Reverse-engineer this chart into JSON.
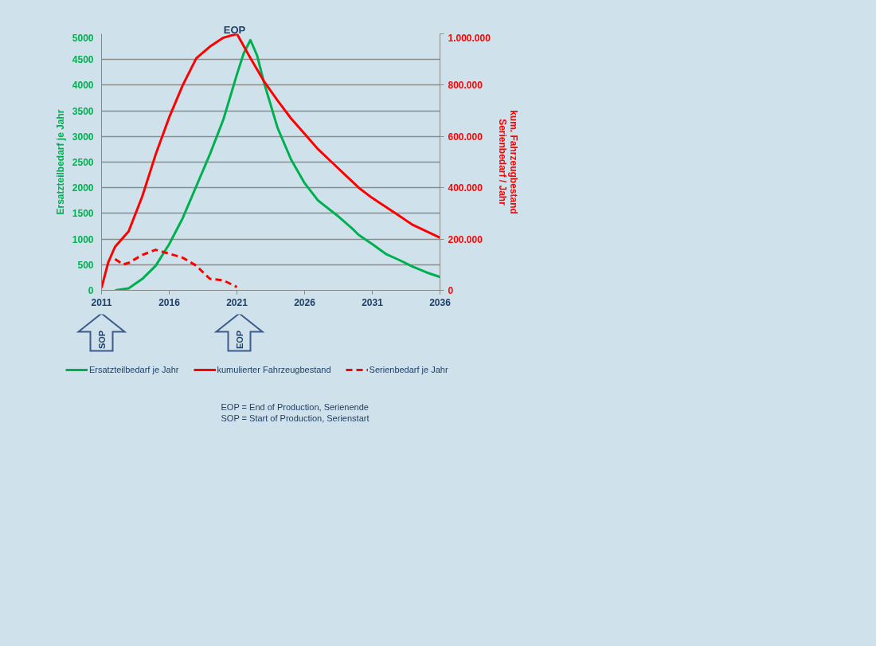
{
  "chart_data": {
    "type": "line",
    "xlabel": null,
    "ylabel": "Ersatzteilbedarf je Jahr",
    "y2label": "kum. Fahrzeugbestand\nSerienbedarf / Jahr",
    "xlim": [
      2011,
      2036
    ],
    "xticks": [
      2011,
      2016,
      2021,
      2026,
      2031,
      2036
    ],
    "ylim": [
      0,
      5000
    ],
    "yticks": [
      0,
      500,
      1000,
      1500,
      2000,
      2500,
      3000,
      3500,
      4000,
      4500,
      5000
    ],
    "y2lim": [
      0,
      1000000
    ],
    "y2ticks": [
      {
        "value": 0,
        "label": "0"
      },
      {
        "value": 200000,
        "label": "200.000"
      },
      {
        "value": 400000,
        "label": "400.000"
      },
      {
        "value": 600000,
        "label": "600.000"
      },
      {
        "value": 800000,
        "label": "800.000"
      },
      {
        "value": 1000000,
        "label": "1.000.000"
      }
    ],
    "grid": "y",
    "legend": "bottom",
    "series": [
      {
        "name": "Ersatzteilbedarf je Jahr",
        "color": "#00b050",
        "line_style": "solid",
        "x": [
          2012,
          2013,
          2014,
          2015,
          2016,
          2017,
          2018,
          2019,
          2020,
          2021,
          2021.5,
          2022,
          2022.5,
          2023,
          2024,
          2025,
          2026,
          2027,
          2028.5,
          2029.5,
          2030,
          2031,
          2032,
          2033,
          2034,
          2035,
          2036
        ],
        "values": [
          0,
          40,
          220,
          480,
          900,
          1410,
          2030,
          2650,
          3330,
          4210,
          4620,
          4880,
          4570,
          4050,
          3170,
          2550,
          2090,
          1750,
          1440,
          1210,
          1080,
          900,
          710,
          590,
          460,
          350,
          260
        ]
      },
      {
        "name": "kumulierter Fahrzeugbestand",
        "color": "#ff0000",
        "line_style": "solid",
        "axis": "y2",
        "x": [
          2011,
          2011.5,
          2012,
          2013,
          2014,
          2015,
          2016,
          2017,
          2018,
          2019,
          2020,
          2021,
          2022,
          2023,
          2024,
          2025,
          2026,
          2027,
          2028,
          2029,
          2030,
          2031,
          2032,
          2033,
          2034,
          2035,
          2036
        ],
        "values": [
          10000,
          110000,
          170000,
          230000,
          365000,
          530000,
          675000,
          800000,
          905000,
          950000,
          985000,
          1000000,
          905000,
          815000,
          740000,
          670000,
          610000,
          550000,
          500000,
          450000,
          400000,
          360000,
          325000,
          290000,
          255000,
          230000,
          205000
        ]
      },
      {
        "name": "Serienbedarf je Jahr",
        "color": "#ff0000",
        "line_style": "dashed",
        "axis": "y2",
        "x": [
          2012,
          2012.6,
          2013,
          2014,
          2015,
          2016,
          2017,
          2018,
          2019,
          2020,
          2021
        ],
        "values": [
          122000,
          101000,
          107000,
          138000,
          158000,
          143000,
          127000,
          96000,
          45000,
          39000,
          13000
        ]
      }
    ],
    "annotations": [
      "EOP",
      "SOP",
      "EOP",
      "EOP = End of Production, Serienende",
      "SOP = Start of Production, Serienstart"
    ]
  }
}
